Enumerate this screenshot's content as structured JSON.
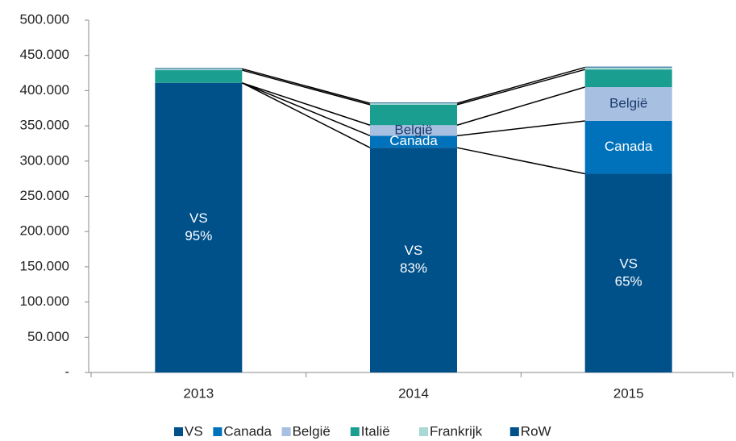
{
  "chart_data": {
    "type": "stacked_bar",
    "categories": [
      "2013",
      "2014",
      "2015"
    ],
    "series": [
      {
        "name": "VS",
        "color": "#00508a",
        "values": [
          411000,
          319000,
          282000
        ],
        "labels": [
          [
            "VS",
            "95%"
          ],
          [
            "VS",
            "83%"
          ],
          [
            "VS",
            "65%"
          ]
        ]
      },
      {
        "name": "Canada",
        "color": "#0072bb",
        "values": [
          0,
          17000,
          75000
        ],
        "labels": [
          null,
          [
            "Canada"
          ],
          [
            "Canada"
          ]
        ]
      },
      {
        "name": "België",
        "color": "#a7bfe1",
        "values": [
          0,
          15000,
          48000
        ],
        "labels": [
          null,
          [
            "België"
          ],
          [
            "België"
          ]
        ]
      },
      {
        "name": "Italië",
        "color": "#1a9e90",
        "values": [
          18000,
          29000,
          25000
        ]
      },
      {
        "name": "Frankrijk",
        "color": "#a9d9d4",
        "values": [
          2000,
          2000,
          3000
        ]
      },
      {
        "name": "RoW",
        "color": "#00508a",
        "values": [
          1000,
          1000,
          1000
        ]
      }
    ],
    "ylim": [
      0,
      500000
    ],
    "yticks": [
      {
        "value": 0,
        "label": "-"
      },
      {
        "value": 50000,
        "label": "50.000"
      },
      {
        "value": 100000,
        "label": "100.000"
      },
      {
        "value": 150000,
        "label": "150.000"
      },
      {
        "value": 200000,
        "label": "200.000"
      },
      {
        "value": 250000,
        "label": "250.000"
      },
      {
        "value": 300000,
        "label": "300.000"
      },
      {
        "value": 350000,
        "label": "350.000"
      },
      {
        "value": 400000,
        "label": "400.000"
      },
      {
        "value": 450000,
        "label": "450.000"
      },
      {
        "value": 500000,
        "label": "500.000"
      }
    ],
    "connectors": true,
    "legend": "bottom"
  }
}
